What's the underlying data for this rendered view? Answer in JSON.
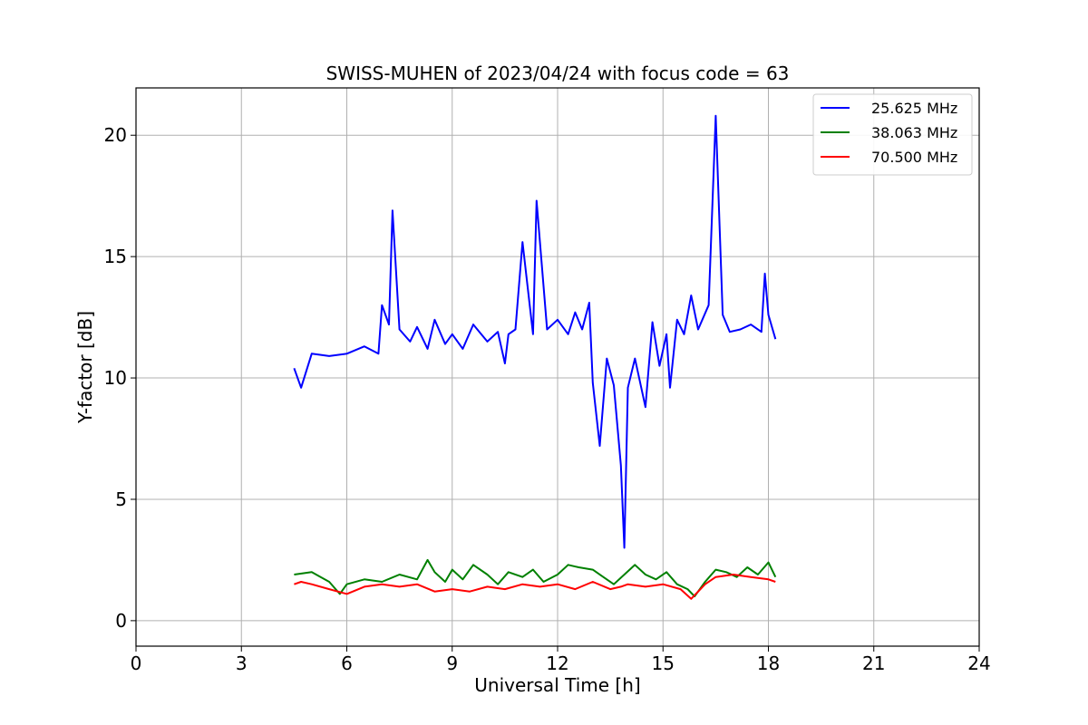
{
  "chart_data": {
    "type": "line",
    "title": "SWISS-MUHEN of 2023/04/24 with focus code = 63",
    "xlabel": "Universal Time [h]",
    "ylabel": "Y-factor [dB]",
    "xlim": [
      0,
      24
    ],
    "ylim": [
      -1.05,
      21.95
    ],
    "xticks": [
      0,
      3,
      6,
      9,
      12,
      15,
      18,
      21,
      24
    ],
    "yticks": [
      0,
      5,
      10,
      15,
      20
    ],
    "grid": true,
    "legend_position": "top-right",
    "series": [
      {
        "name": "25.625 MHz",
        "color": "#0000ff",
        "x": [
          4.5,
          4.7,
          5.0,
          5.5,
          6.0,
          6.5,
          6.9,
          7.0,
          7.2,
          7.3,
          7.5,
          7.8,
          8.0,
          8.3,
          8.5,
          8.8,
          9.0,
          9.3,
          9.6,
          10.0,
          10.3,
          10.5,
          10.6,
          10.8,
          11.0,
          11.3,
          11.4,
          11.7,
          12.0,
          12.3,
          12.5,
          12.7,
          12.9,
          13.0,
          13.2,
          13.4,
          13.6,
          13.8,
          13.9,
          14.0,
          14.2,
          14.5,
          14.7,
          14.9,
          15.1,
          15.2,
          15.4,
          15.6,
          15.8,
          16.0,
          16.3,
          16.5,
          16.7,
          16.9,
          17.2,
          17.5,
          17.8,
          17.9,
          18.0,
          18.2
        ],
        "y": [
          10.4,
          9.6,
          11.0,
          10.9,
          11.0,
          11.3,
          11.0,
          13.0,
          12.2,
          16.9,
          12.0,
          11.5,
          12.1,
          11.2,
          12.4,
          11.4,
          11.8,
          11.2,
          12.2,
          11.5,
          11.9,
          10.6,
          11.8,
          12.0,
          15.6,
          11.8,
          17.3,
          12.0,
          12.4,
          11.8,
          12.7,
          12.0,
          13.1,
          9.8,
          7.2,
          10.8,
          9.7,
          6.4,
          3.0,
          9.6,
          10.8,
          8.8,
          12.3,
          10.5,
          11.8,
          9.6,
          12.4,
          11.8,
          13.4,
          12.0,
          13.0,
          20.8,
          12.6,
          11.9,
          12.0,
          12.2,
          11.9,
          14.3,
          12.6,
          11.6
        ]
      },
      {
        "name": "38.063 MHz",
        "color": "#008000",
        "x": [
          4.5,
          5.0,
          5.5,
          5.8,
          6.0,
          6.5,
          7.0,
          7.5,
          8.0,
          8.3,
          8.5,
          8.8,
          9.0,
          9.3,
          9.6,
          10.0,
          10.3,
          10.6,
          11.0,
          11.3,
          11.6,
          12.0,
          12.3,
          12.6,
          13.0,
          13.3,
          13.6,
          13.9,
          14.2,
          14.5,
          14.8,
          15.1,
          15.4,
          15.7,
          15.9,
          16.2,
          16.5,
          16.8,
          17.1,
          17.4,
          17.7,
          18.0,
          18.2
        ],
        "y": [
          1.9,
          2.0,
          1.6,
          1.1,
          1.5,
          1.7,
          1.6,
          1.9,
          1.7,
          2.5,
          2.0,
          1.6,
          2.1,
          1.7,
          2.3,
          1.9,
          1.5,
          2.0,
          1.8,
          2.1,
          1.6,
          1.9,
          2.3,
          2.2,
          2.1,
          1.8,
          1.5,
          1.9,
          2.3,
          1.9,
          1.7,
          2.0,
          1.5,
          1.3,
          1.0,
          1.6,
          2.1,
          2.0,
          1.8,
          2.2,
          1.9,
          2.4,
          1.8
        ]
      },
      {
        "name": "70.500 MHz",
        "color": "#ff0000",
        "x": [
          4.5,
          4.7,
          5.0,
          5.5,
          6.0,
          6.5,
          7.0,
          7.5,
          8.0,
          8.5,
          9.0,
          9.5,
          10.0,
          10.5,
          11.0,
          11.5,
          12.0,
          12.5,
          13.0,
          13.5,
          13.8,
          14.0,
          14.5,
          15.0,
          15.5,
          15.8,
          16.2,
          16.5,
          17.0,
          17.5,
          18.0,
          18.2
        ],
        "y": [
          1.5,
          1.6,
          1.5,
          1.3,
          1.1,
          1.4,
          1.5,
          1.4,
          1.5,
          1.2,
          1.3,
          1.2,
          1.4,
          1.3,
          1.5,
          1.4,
          1.5,
          1.3,
          1.6,
          1.3,
          1.4,
          1.5,
          1.4,
          1.5,
          1.3,
          0.9,
          1.5,
          1.8,
          1.9,
          1.8,
          1.7,
          1.6
        ]
      }
    ]
  }
}
